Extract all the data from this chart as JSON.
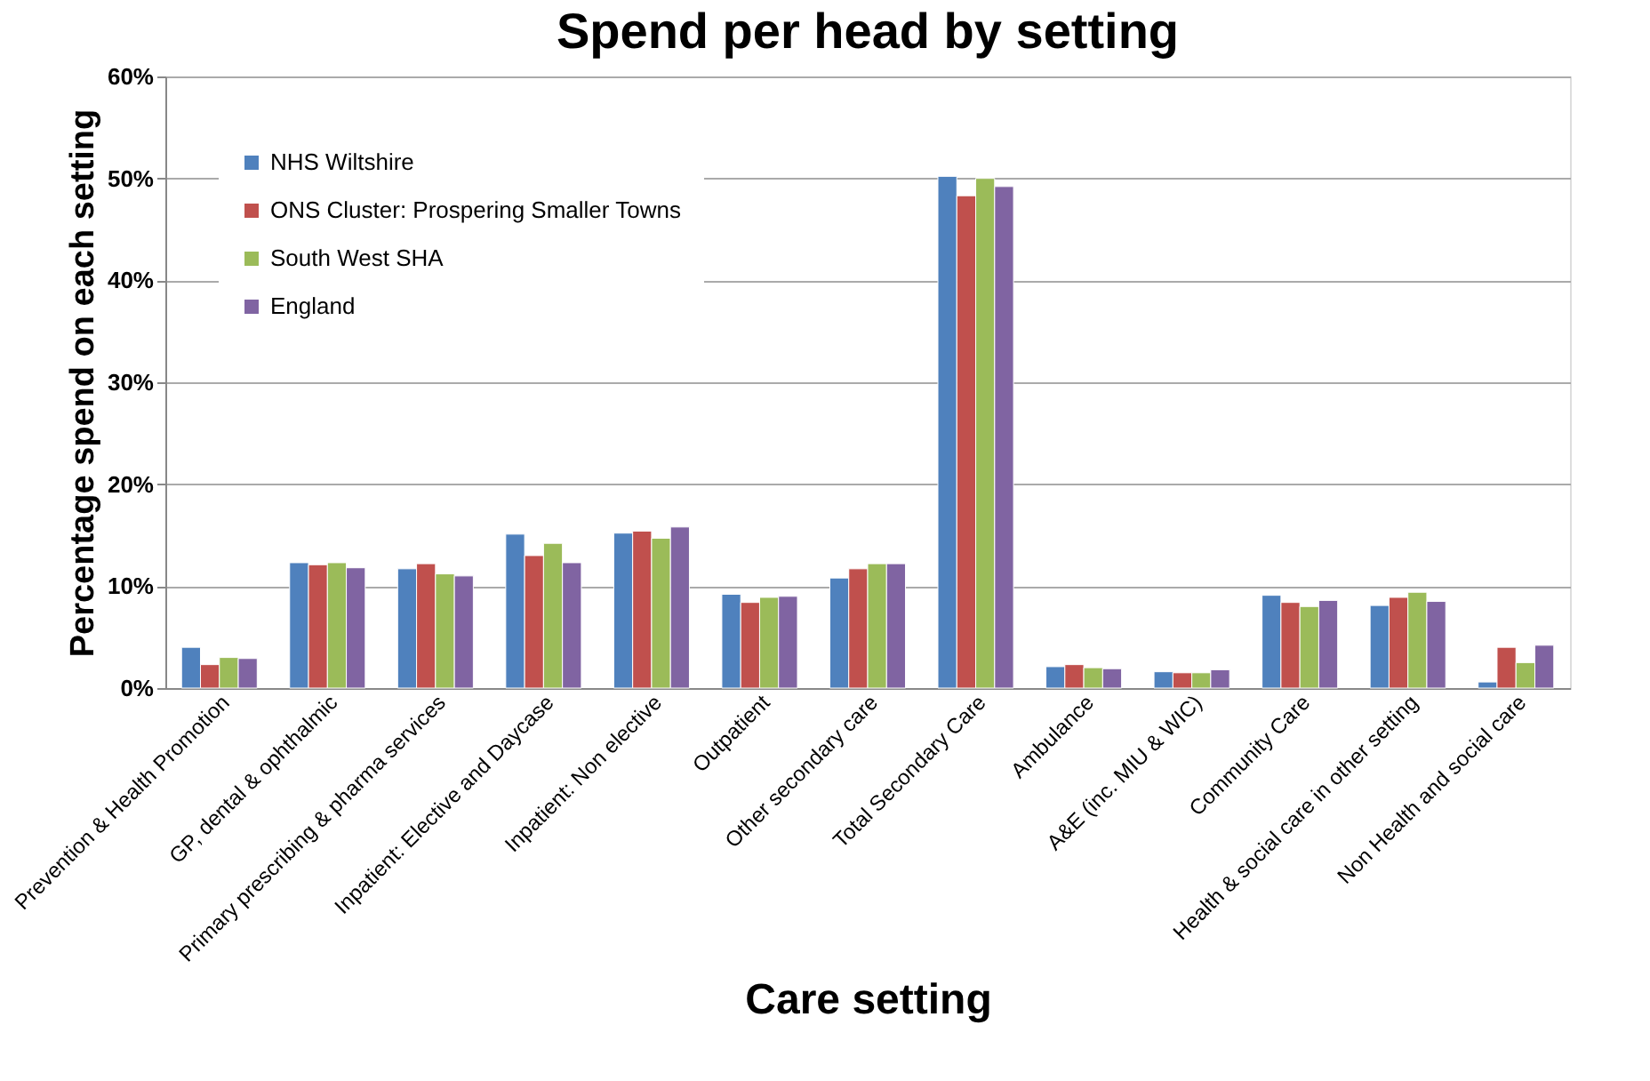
{
  "chart_data": {
    "type": "bar",
    "title": "Spend per head by setting",
    "xlabel": "Care setting",
    "ylabel": "Percentage spend on each  setting",
    "categories": [
      "Prevention & Health Promotion",
      "GP, dental & ophthalmic",
      "Primary prescribing & pharma services",
      "Inpatient: Elective and Daycase",
      "Inpatient: Non elective",
      "Outpatient",
      "Other secondary care",
      "Total Secondary Care",
      "Ambulance",
      "A&E (inc. MIU & WIC)",
      "Community Care",
      "Health & social care in other setting",
      "Non Health and social care"
    ],
    "series": [
      {
        "name": "NHS Wiltshire",
        "color": "#4f81bd",
        "values": [
          4.0,
          12.3,
          11.7,
          15.1,
          15.2,
          9.2,
          10.8,
          50.2,
          2.1,
          1.6,
          9.1,
          8.1,
          0.6
        ]
      },
      {
        "name": "ONS Cluster: Prospering Smaller Towns",
        "color": "#c0504d",
        "values": [
          2.3,
          12.1,
          12.2,
          13.0,
          15.4,
          8.4,
          11.7,
          48.3,
          2.3,
          1.5,
          8.4,
          8.9,
          4.0
        ]
      },
      {
        "name": "South West SHA",
        "color": "#9bbb59",
        "values": [
          3.0,
          12.3,
          11.2,
          14.2,
          14.7,
          8.9,
          12.2,
          50.0,
          2.0,
          1.5,
          8.0,
          9.4,
          2.5
        ]
      },
      {
        "name": "England",
        "color": "#8064a2",
        "values": [
          2.9,
          11.8,
          11.0,
          12.3,
          15.8,
          9.0,
          12.2,
          49.2,
          1.9,
          1.8,
          8.6,
          8.5,
          4.2
        ]
      }
    ],
    "ylim": [
      0,
      60
    ],
    "yticks": [
      {
        "value": 0,
        "label": "0%"
      },
      {
        "value": 10,
        "label": "10%"
      },
      {
        "value": 20,
        "label": "20%"
      },
      {
        "value": 30,
        "label": "30%"
      },
      {
        "value": 40,
        "label": "40%"
      },
      {
        "value": 50,
        "label": "50%"
      },
      {
        "value": 60,
        "label": "60%"
      }
    ],
    "grid": "y",
    "legend": "top left"
  }
}
